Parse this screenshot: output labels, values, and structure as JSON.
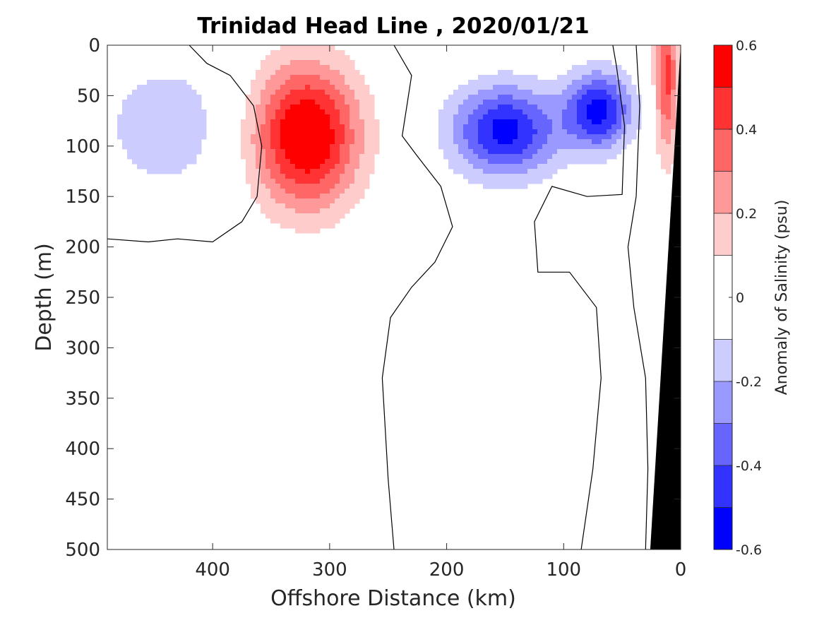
{
  "chart_data": {
    "type": "contourf",
    "title": "Trinidad Head Line , 2020/01/21",
    "xlabel": "Offshore Distance (km)",
    "ylabel": "Depth (m)",
    "colorbar_label": "Anomaly of Salinity (psu)",
    "xlim": [
      490,
      0
    ],
    "ylim": [
      500,
      0
    ],
    "x_reversed": true,
    "y_reversed": true,
    "xticks": [
      {
        "value": 400,
        "label": "400"
      },
      {
        "value": 300,
        "label": "300"
      },
      {
        "value": 200,
        "label": "200"
      },
      {
        "value": 100,
        "label": "100"
      },
      {
        "value": 0,
        "label": "0"
      }
    ],
    "yticks": [
      {
        "value": 0,
        "label": "0"
      },
      {
        "value": 50,
        "label": "50"
      },
      {
        "value": 100,
        "label": "100"
      },
      {
        "value": 150,
        "label": "150"
      },
      {
        "value": 200,
        "label": "200"
      },
      {
        "value": 250,
        "label": "250"
      },
      {
        "value": 300,
        "label": "300"
      },
      {
        "value": 350,
        "label": "350"
      },
      {
        "value": 400,
        "label": "400"
      },
      {
        "value": 450,
        "label": "450"
      },
      {
        "value": 500,
        "label": "500"
      }
    ],
    "colorbar": {
      "range": [
        -0.6,
        0.6
      ],
      "levels": [
        -0.6,
        -0.5,
        -0.4,
        -0.3,
        -0.2,
        -0.1,
        0.1,
        0.2,
        0.3,
        0.4,
        0.5,
        0.6
      ],
      "colors": [
        "#0000ff",
        "#3333ff",
        "#6666ff",
        "#9999ff",
        "#ccccff",
        "#ffffff",
        "#ffcccc",
        "#ff9999",
        "#ff6666",
        "#ff3333",
        "#ff0000"
      ],
      "ticks": [
        {
          "value": 0.6,
          "label": "0.6"
        },
        {
          "value": 0.4,
          "label": "0.4"
        },
        {
          "value": 0.2,
          "label": "0.2"
        },
        {
          "value": 0,
          "label": "0"
        },
        {
          "value": -0.2,
          "label": "-0.2"
        },
        {
          "value": -0.4,
          "label": "-0.4"
        },
        {
          "value": -0.6,
          "label": "-0.6"
        }
      ]
    },
    "features": [
      {
        "name": "positive-anomaly-core",
        "center_km": 320,
        "center_depth_m": 90,
        "peak_psu": 0.6
      },
      {
        "name": "negative-anomaly-core",
        "center_km": 150,
        "center_depth_m": 85,
        "peak_psu": -0.5
      },
      {
        "name": "negative-anomaly-secondary",
        "center_km": 70,
        "center_depth_m": 65,
        "peak_psu": -0.5
      },
      {
        "name": "coastal-positive-anomaly",
        "center_km": 12,
        "center_depth_m": 30,
        "peak_psu": 0.4
      }
    ],
    "bathymetry": {
      "color": "#000000",
      "points": [
        [
          0,
          0
        ],
        [
          0,
          500
        ],
        [
          26,
          500
        ]
      ]
    },
    "colors": {
      "positive": "#ff0000",
      "negative": "#0000ff",
      "zero_line": "#000000"
    }
  }
}
